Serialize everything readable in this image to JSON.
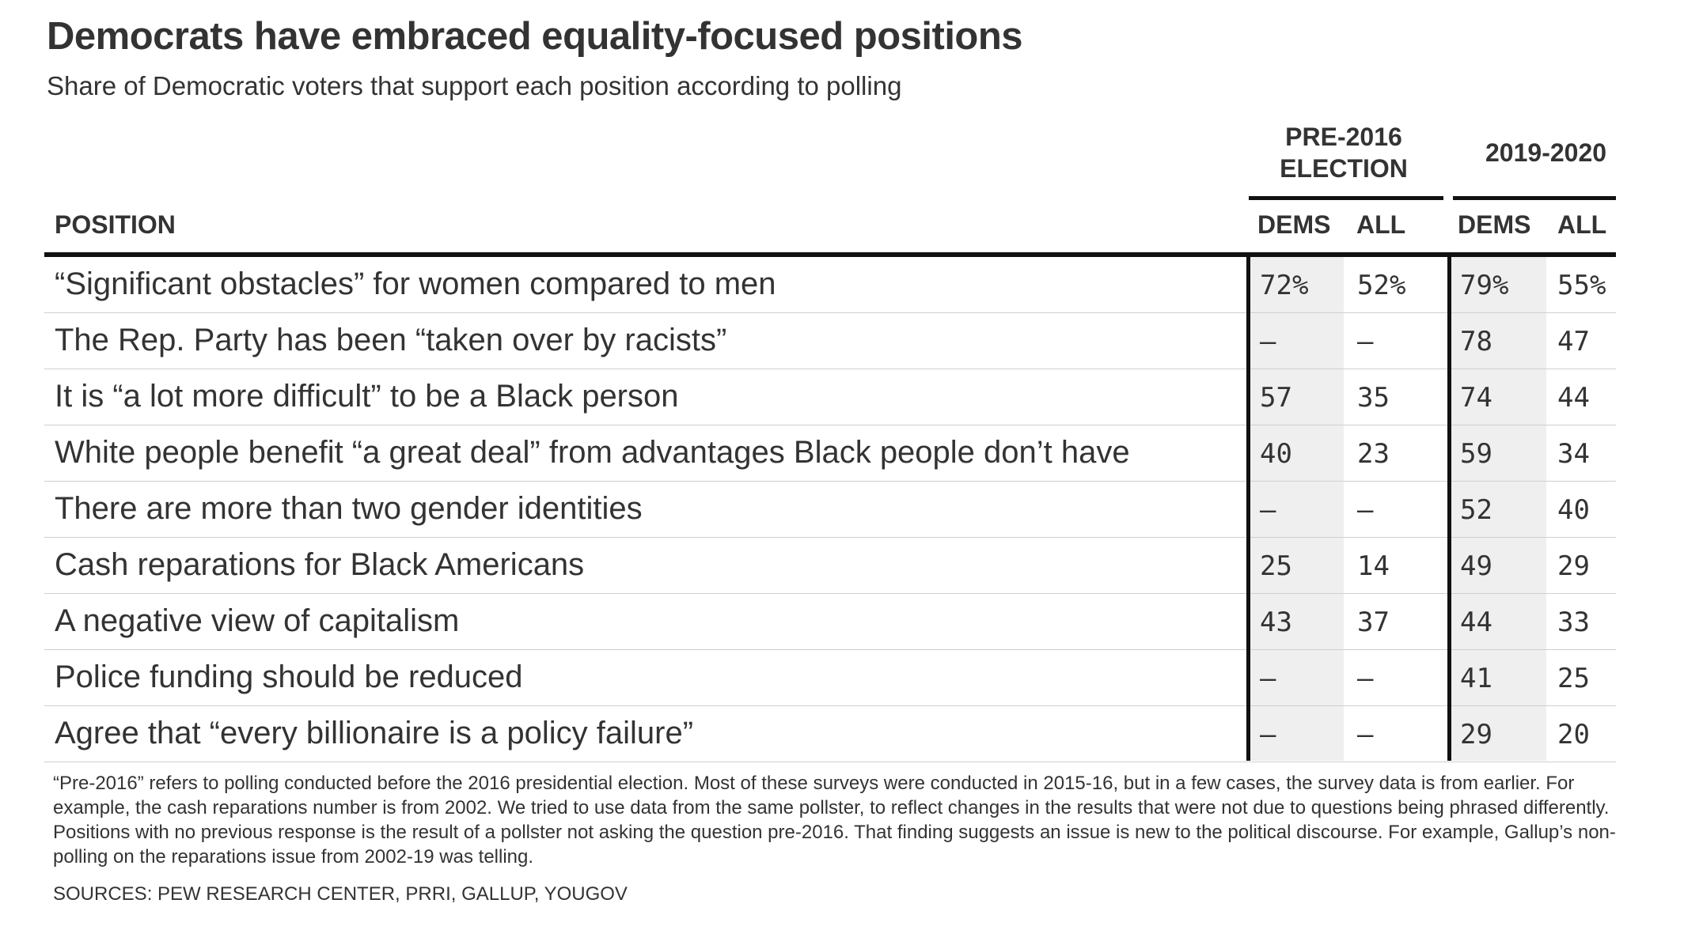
{
  "title": "Democrats have embraced equality-focused positions",
  "subtitle": "Share of Democratic voters that support each position according to polling",
  "groups": {
    "pre2016": "PRE-2016 ELECTION",
    "recent": "2019-2020"
  },
  "columns": {
    "position": "POSITION",
    "pre_dems": "DEMS",
    "pre_all": "ALL",
    "rec_dems": "DEMS",
    "rec_all": "ALL"
  },
  "chart_data": {
    "type": "table",
    "title": "Democrats have embraced equality-focused positions",
    "subtitle": "Share of Democratic voters that support each position according to polling",
    "column_groups": [
      "PRE-2016 ELECTION",
      "2019-2020"
    ],
    "columns": [
      "POSITION",
      "DEMS",
      "ALL",
      "DEMS",
      "ALL"
    ],
    "rows": [
      {
        "position": "“Significant obstacles” for women compared to men",
        "pre_dems": "72%",
        "pre_all": "52%",
        "rec_dems": "79%",
        "rec_all": "55%"
      },
      {
        "position": "The Rep. Party has been “taken over by racists”",
        "pre_dems": "—",
        "pre_all": "—",
        "rec_dems": "78",
        "rec_all": "47"
      },
      {
        "position": "It is “a lot more difficult” to be a Black person",
        "pre_dems": "57",
        "pre_all": "35",
        "rec_dems": "74",
        "rec_all": "44"
      },
      {
        "position": "White people benefit “a great deal” from advantages Black people don’t have",
        "pre_dems": "40",
        "pre_all": "23",
        "rec_dems": "59",
        "rec_all": "34"
      },
      {
        "position": "There are more than two gender identities",
        "pre_dems": "—",
        "pre_all": "—",
        "rec_dems": "52",
        "rec_all": "40"
      },
      {
        "position": "Cash reparations for Black Americans",
        "pre_dems": "25",
        "pre_all": "14",
        "rec_dems": "49",
        "rec_all": "29"
      },
      {
        "position": "A negative view of capitalism",
        "pre_dems": "43",
        "pre_all": "37",
        "rec_dems": "44",
        "rec_all": "33"
      },
      {
        "position": "Police funding should be reduced",
        "pre_dems": "—",
        "pre_all": "—",
        "rec_dems": "41",
        "rec_all": "25"
      },
      {
        "position": "Agree that “every billionaire is a policy failure”",
        "pre_dems": "—",
        "pre_all": "—",
        "rec_dems": "29",
        "rec_all": "20"
      }
    ]
  },
  "footnote": "“Pre-2016” refers to polling conducted before the 2016 presidential election. Most of these surveys were conducted in 2015-16, but in a few cases, the survey data is from earlier. For example, the cash reparations number is from 2002. We tried to use data from the same pollster, to reflect changes in the results that were not due to questions being phrased differently. Positions with no previous response is the result of a pollster not asking the question pre-2016. That finding suggests an issue is new to the political discourse. For example, Gallup’s non-polling on the reparations issue from 2002-19 was telling.",
  "sources": "SOURCES: PEW RESEARCH CENTER, PRRI, GALLUP, YOUGOV",
  "colors": {
    "text": "#333333",
    "rule": "#111111",
    "shade": "#efefef",
    "row_divider": "#cfcfcf"
  }
}
